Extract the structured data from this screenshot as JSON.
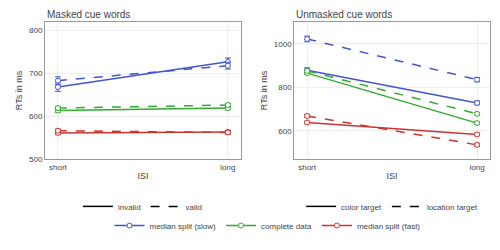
{
  "chart_data": [
    {
      "type": "line",
      "title": "Masked cue words",
      "x_label": "ISI",
      "y_label": "RTs in ms",
      "categories": [
        "short",
        "long"
      ],
      "ylim": [
        500,
        820
      ],
      "yticks": [
        500,
        600,
        700,
        800
      ],
      "grid": true,
      "legend": "bottom",
      "line_style_legend": [
        {
          "line_style": "solid",
          "name": "invalid"
        },
        {
          "line_style": "dashed",
          "name": "valid"
        }
      ],
      "series": [
        {
          "name": "median split (slow)",
          "color": "#4455cc",
          "line_style": "solid",
          "marker": "circle",
          "values": [
            668,
            727
          ],
          "error": [
            10,
            9
          ]
        },
        {
          "name": "median split (slow)",
          "color": "#4455cc",
          "line_style": "dashed",
          "marker": "circle",
          "values": [
            683,
            718
          ],
          "error": [
            9,
            8
          ]
        },
        {
          "name": "complete data",
          "color": "#33aa33",
          "line_style": "solid",
          "marker": "circle",
          "values": [
            613,
            619
          ],
          "error": [
            4,
            4
          ]
        },
        {
          "name": "complete data",
          "color": "#33aa33",
          "line_style": "dashed",
          "marker": "circle",
          "values": [
            619,
            626
          ],
          "error": [
            4,
            4
          ]
        },
        {
          "name": "median split (fast)",
          "color": "#cc3333",
          "line_style": "solid",
          "marker": "circle",
          "values": [
            561,
            563
          ],
          "error": [
            4,
            4
          ]
        },
        {
          "name": "median split (fast)",
          "color": "#cc3333",
          "line_style": "dashed",
          "marker": "circle",
          "values": [
            566,
            562
          ],
          "error": [
            4,
            4
          ]
        }
      ]
    },
    {
      "type": "line",
      "title": "Unmasked cue words",
      "x_label": "ISI",
      "y_label": "RTs in ms",
      "categories": [
        "short",
        "long"
      ],
      "ylim": [
        470,
        1100
      ],
      "yticks": [
        600,
        800,
        1000
      ],
      "grid": true,
      "legend": "bottom",
      "line_style_legend": [
        {
          "line_style": "solid",
          "name": "color target"
        },
        {
          "line_style": "dashed",
          "name": "location target"
        }
      ],
      "series": [
        {
          "name": "median split (slow)",
          "color": "#4455cc",
          "line_style": "solid",
          "marker": "circle",
          "values": [
            878,
            728
          ],
          "error": [
            11,
            9
          ]
        },
        {
          "name": "median split (slow)",
          "color": "#4455cc",
          "line_style": "dashed",
          "marker": "circle",
          "values": [
            1022,
            835
          ],
          "error": [
            13,
            10
          ]
        },
        {
          "name": "complete data",
          "color": "#33aa33",
          "line_style": "solid",
          "marker": "circle",
          "values": [
            865,
            635
          ],
          "error": [
            6,
            6
          ]
        },
        {
          "name": "complete data",
          "color": "#33aa33",
          "line_style": "dashed",
          "marker": "circle",
          "values": [
            875,
            678
          ],
          "error": [
            6,
            6
          ]
        },
        {
          "name": "median split (fast)",
          "color": "#cc3333",
          "line_style": "solid",
          "marker": "circle",
          "values": [
            638,
            583
          ],
          "error": [
            6,
            6
          ]
        },
        {
          "name": "median split (fast)",
          "color": "#cc3333",
          "line_style": "dashed",
          "marker": "circle",
          "values": [
            668,
            535
          ],
          "error": [
            7,
            7
          ]
        }
      ]
    }
  ]
}
